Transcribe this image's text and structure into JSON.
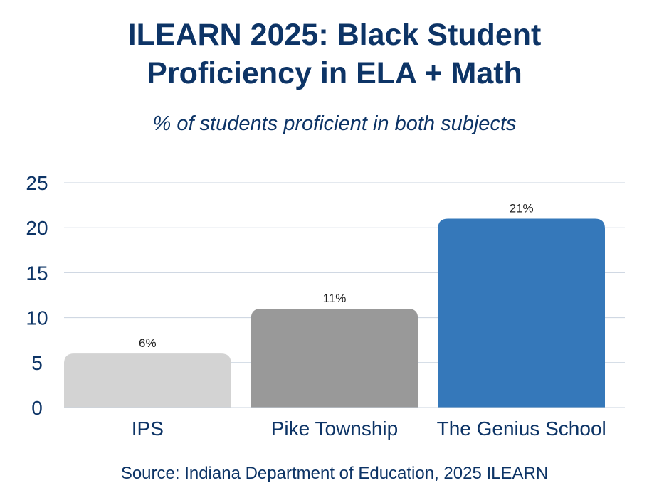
{
  "chart_data": {
    "type": "bar",
    "title": "ILEARN 2025: Black Student Proficiency in ELA + Math",
    "title_lines": [
      "ILEARN 2025: Black Student",
      "Proficiency in ELA + Math"
    ],
    "subtitle": "% of students proficient in both subjects",
    "categories": [
      "IPS",
      "Pike Township",
      "The Genius School"
    ],
    "values": [
      6,
      11,
      21
    ],
    "data_labels": [
      "6%",
      "11%",
      "21%"
    ],
    "bar_colors": [
      "#d3d3d3",
      "#999999",
      "#3578ba"
    ],
    "ylim": [
      0,
      25
    ],
    "yticks": [
      0,
      5,
      10,
      15,
      20,
      25
    ],
    "grid": true,
    "xlabel": "",
    "ylabel": "",
    "source": "Source: Indiana Department of Education, 2025 ILEARN"
  },
  "colors": {
    "text": "#0d3466",
    "gridline": "#c9d3df"
  }
}
